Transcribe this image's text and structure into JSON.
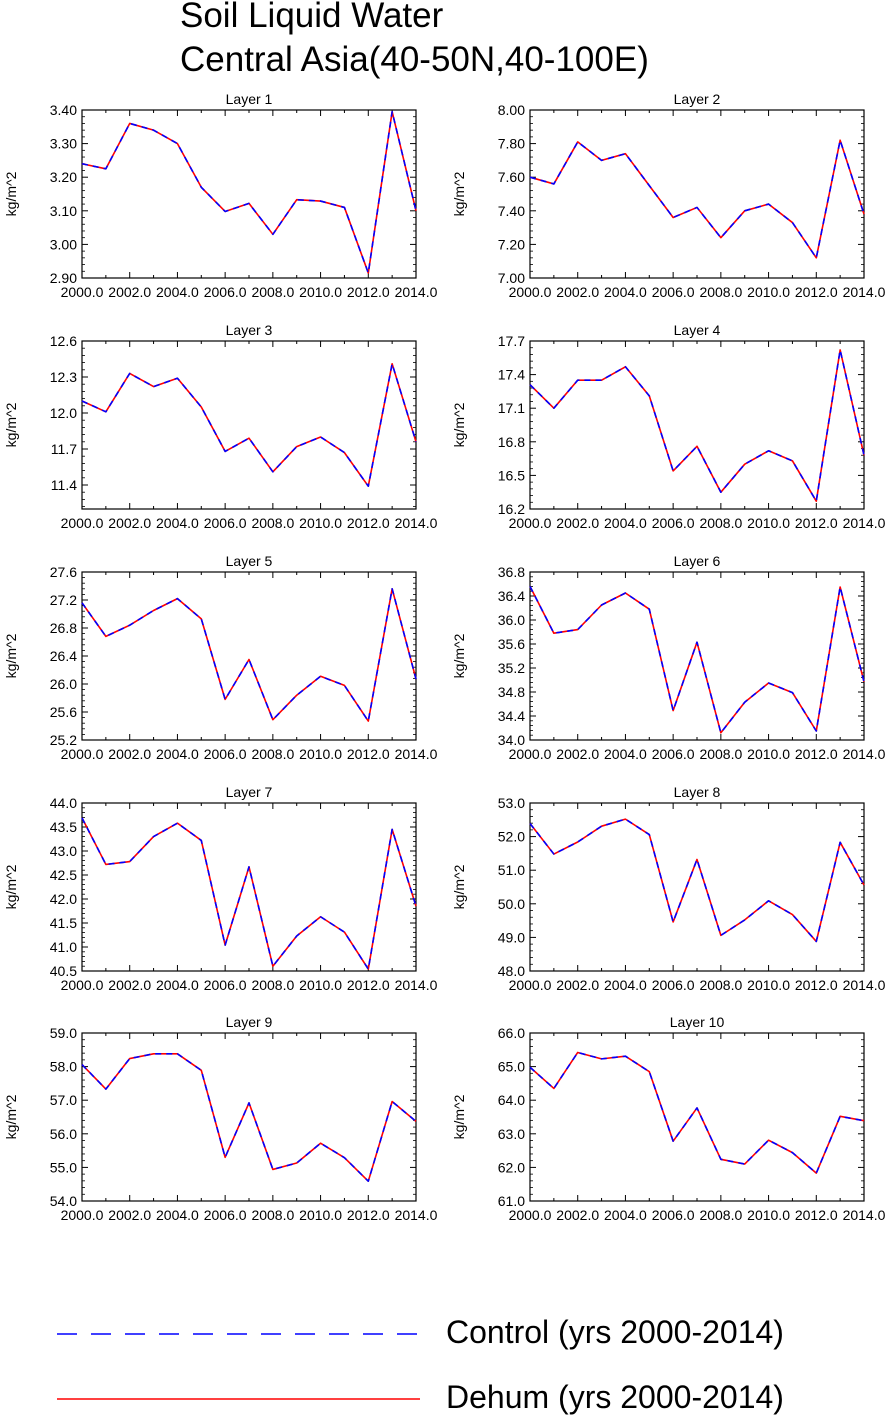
{
  "title_line1": "Soil Liquid Water",
  "title_line2": "Central Asia(40-50N,40-100E)",
  "ylabel": "kg/m^2",
  "colors": {
    "control": "#0000ff",
    "dehum": "#ff0000"
  },
  "legend": {
    "control": "Control (yrs 2000-2014)",
    "dehum": "Dehum (yrs 2000-2014)"
  },
  "chart_data": [
    {
      "type": "line",
      "title": "Layer 1",
      "ylabel": "kg/m^2",
      "x": [
        2000,
        2001,
        2002,
        2003,
        2004,
        2005,
        2006,
        2007,
        2008,
        2009,
        2010,
        2011,
        2012,
        2013,
        2014
      ],
      "xlim": [
        2000,
        2014
      ],
      "xticks": [
        "2000.0",
        "2002.0",
        "2004.0",
        "2006.0",
        "2008.0",
        "2010.0",
        "2012.0",
        "2014.0"
      ],
      "ylim": [
        2.9,
        3.4
      ],
      "yticks": [
        "2.90",
        "3.00",
        "3.10",
        "3.20",
        "3.30",
        "3.40"
      ],
      "series": [
        {
          "name": "Control (yrs 2000-2014)",
          "values": [
            3.24,
            3.225,
            3.36,
            3.34,
            3.3,
            3.17,
            3.098,
            3.122,
            3.03,
            3.133,
            3.129,
            3.11,
            2.915,
            3.395,
            3.1
          ]
        },
        {
          "name": "Dehum (yrs 2000-2014)",
          "values": [
            3.24,
            3.225,
            3.36,
            3.34,
            3.3,
            3.17,
            3.098,
            3.122,
            3.03,
            3.133,
            3.129,
            3.11,
            2.915,
            3.395,
            3.1
          ]
        }
      ]
    },
    {
      "type": "line",
      "title": "Layer 2",
      "ylabel": "kg/m^2",
      "x": [
        2000,
        2001,
        2002,
        2003,
        2004,
        2005,
        2006,
        2007,
        2008,
        2009,
        2010,
        2011,
        2012,
        2013,
        2014
      ],
      "xlim": [
        2000,
        2014
      ],
      "xticks": [
        "2000.0",
        "2002.0",
        "2004.0",
        "2006.0",
        "2008.0",
        "2010.0",
        "2012.0",
        "2014.0"
      ],
      "ylim": [
        7.0,
        8.0
      ],
      "yticks": [
        "7.00",
        "7.20",
        "7.40",
        "7.60",
        "7.80",
        "8.00"
      ],
      "series": [
        {
          "name": "Control (yrs 2000-2014)",
          "values": [
            7.6,
            7.56,
            7.81,
            7.7,
            7.74,
            7.55,
            7.36,
            7.42,
            7.24,
            7.4,
            7.44,
            7.33,
            7.12,
            7.82,
            7.38
          ]
        },
        {
          "name": "Dehum (yrs 2000-2014)",
          "values": [
            7.6,
            7.56,
            7.81,
            7.7,
            7.74,
            7.55,
            7.36,
            7.42,
            7.24,
            7.4,
            7.44,
            7.33,
            7.12,
            7.82,
            7.38
          ]
        }
      ]
    },
    {
      "type": "line",
      "title": "Layer 3",
      "ylabel": "kg/m^2",
      "x": [
        2000,
        2001,
        2002,
        2003,
        2004,
        2005,
        2006,
        2007,
        2008,
        2009,
        2010,
        2011,
        2012,
        2013,
        2014
      ],
      "xlim": [
        2000,
        2014
      ],
      "xticks": [
        "2000.0",
        "2002.0",
        "2004.0",
        "2006.0",
        "2008.0",
        "2010.0",
        "2012.0",
        "2014.0"
      ],
      "ylim": [
        11.2,
        12.6
      ],
      "yticks": [
        "11.4",
        "11.7",
        "12.0",
        "12.3",
        "12.6"
      ],
      "series": [
        {
          "name": "Control (yrs 2000-2014)",
          "values": [
            12.1,
            12.01,
            12.33,
            12.22,
            12.29,
            12.05,
            11.68,
            11.79,
            11.51,
            11.72,
            11.8,
            11.67,
            11.39,
            12.41,
            11.76
          ]
        },
        {
          "name": "Dehum (yrs 2000-2014)",
          "values": [
            12.1,
            12.01,
            12.33,
            12.22,
            12.29,
            12.05,
            11.68,
            11.79,
            11.51,
            11.72,
            11.8,
            11.67,
            11.39,
            12.41,
            11.76
          ]
        }
      ]
    },
    {
      "type": "line",
      "title": "Layer 4",
      "ylabel": "kg/m^2",
      "x": [
        2000,
        2001,
        2002,
        2003,
        2004,
        2005,
        2006,
        2007,
        2008,
        2009,
        2010,
        2011,
        2012,
        2013,
        2014
      ],
      "xlim": [
        2000,
        2014
      ],
      "xticks": [
        "2000.0",
        "2002.0",
        "2004.0",
        "2006.0",
        "2008.0",
        "2010.0",
        "2012.0",
        "2014.0"
      ],
      "ylim": [
        16.2,
        17.7
      ],
      "yticks": [
        "16.2",
        "16.5",
        "16.8",
        "17.1",
        "17.4",
        "17.7"
      ],
      "series": [
        {
          "name": "Control (yrs 2000-2014)",
          "values": [
            17.31,
            17.1,
            17.35,
            17.35,
            17.47,
            17.21,
            16.54,
            16.76,
            16.35,
            16.6,
            16.72,
            16.63,
            16.27,
            17.62,
            16.68
          ]
        },
        {
          "name": "Dehum (yrs 2000-2014)",
          "values": [
            17.31,
            17.1,
            17.35,
            17.35,
            17.47,
            17.21,
            16.54,
            16.76,
            16.35,
            16.6,
            16.72,
            16.63,
            16.27,
            17.62,
            16.68
          ]
        }
      ]
    },
    {
      "type": "line",
      "title": "Layer 5",
      "ylabel": "kg/m^2",
      "x": [
        2000,
        2001,
        2002,
        2003,
        2004,
        2005,
        2006,
        2007,
        2008,
        2009,
        2010,
        2011,
        2012,
        2013,
        2014
      ],
      "xlim": [
        2000,
        2014
      ],
      "xticks": [
        "2000.0",
        "2002.0",
        "2004.0",
        "2006.0",
        "2008.0",
        "2010.0",
        "2012.0",
        "2014.0"
      ],
      "ylim": [
        25.2,
        27.6
      ],
      "yticks": [
        "25.2",
        "25.6",
        "26.0",
        "26.4",
        "26.8",
        "27.2",
        "27.6"
      ],
      "series": [
        {
          "name": "Control (yrs 2000-2014)",
          "values": [
            27.16,
            26.68,
            26.84,
            27.05,
            27.22,
            26.93,
            25.78,
            26.35,
            25.49,
            25.84,
            26.11,
            25.98,
            25.47,
            27.36,
            26.07
          ]
        },
        {
          "name": "Dehum (yrs 2000-2014)",
          "values": [
            27.16,
            26.68,
            26.84,
            27.05,
            27.22,
            26.93,
            25.78,
            26.35,
            25.49,
            25.84,
            26.11,
            25.98,
            25.47,
            27.36,
            26.07
          ]
        }
      ]
    },
    {
      "type": "line",
      "title": "Layer 6",
      "ylabel": "kg/m^2",
      "x": [
        2000,
        2001,
        2002,
        2003,
        2004,
        2005,
        2006,
        2007,
        2008,
        2009,
        2010,
        2011,
        2012,
        2013,
        2014
      ],
      "xlim": [
        2000,
        2014
      ],
      "xticks": [
        "2000.0",
        "2002.0",
        "2004.0",
        "2006.0",
        "2008.0",
        "2010.0",
        "2012.0",
        "2014.0"
      ],
      "ylim": [
        34.0,
        36.8
      ],
      "yticks": [
        "34.0",
        "34.4",
        "34.8",
        "35.2",
        "35.6",
        "36.0",
        "36.4",
        "36.8"
      ],
      "series": [
        {
          "name": "Control (yrs 2000-2014)",
          "values": [
            36.56,
            35.78,
            35.84,
            36.25,
            36.45,
            36.18,
            34.49,
            35.63,
            34.12,
            34.63,
            34.95,
            34.79,
            34.15,
            36.55,
            34.97
          ]
        },
        {
          "name": "Dehum (yrs 2000-2014)",
          "values": [
            36.56,
            35.78,
            35.84,
            36.25,
            36.45,
            36.18,
            34.49,
            35.63,
            34.12,
            34.63,
            34.95,
            34.79,
            34.15,
            36.55,
            34.97
          ]
        }
      ]
    },
    {
      "type": "line",
      "title": "Layer 7",
      "ylabel": "kg/m^2",
      "x": [
        2000,
        2001,
        2002,
        2003,
        2004,
        2005,
        2006,
        2007,
        2008,
        2009,
        2010,
        2011,
        2012,
        2013,
        2014
      ],
      "xlim": [
        2000,
        2014
      ],
      "xticks": [
        "2000.0",
        "2002.0",
        "2004.0",
        "2006.0",
        "2008.0",
        "2010.0",
        "2012.0",
        "2014.0"
      ],
      "ylim": [
        40.5,
        44.0
      ],
      "yticks": [
        "40.5",
        "41.0",
        "41.5",
        "42.0",
        "42.5",
        "43.0",
        "43.5",
        "44.0"
      ],
      "series": [
        {
          "name": "Control (yrs 2000-2014)",
          "values": [
            43.69,
            42.72,
            42.78,
            43.3,
            43.58,
            43.22,
            41.04,
            42.67,
            40.6,
            41.23,
            41.63,
            41.31,
            40.54,
            43.45,
            41.85
          ]
        },
        {
          "name": "Dehum (yrs 2000-2014)",
          "values": [
            43.69,
            42.72,
            42.78,
            43.3,
            43.58,
            43.22,
            41.04,
            42.67,
            40.6,
            41.23,
            41.63,
            41.31,
            40.54,
            43.45,
            41.85
          ]
        }
      ]
    },
    {
      "type": "line",
      "title": "Layer 8",
      "ylabel": "kg/m^2",
      "x": [
        2000,
        2001,
        2002,
        2003,
        2004,
        2005,
        2006,
        2007,
        2008,
        2009,
        2010,
        2011,
        2012,
        2013,
        2014
      ],
      "xlim": [
        2000,
        2014
      ],
      "xticks": [
        "2000.0",
        "2002.0",
        "2004.0",
        "2006.0",
        "2008.0",
        "2010.0",
        "2012.0",
        "2014.0"
      ],
      "ylim": [
        48.0,
        53.0
      ],
      "yticks": [
        "48.0",
        "49.0",
        "50.0",
        "51.0",
        "52.0",
        "53.0"
      ],
      "series": [
        {
          "name": "Control (yrs 2000-2014)",
          "values": [
            52.39,
            51.48,
            51.84,
            52.31,
            52.52,
            52.06,
            49.46,
            51.32,
            49.06,
            49.52,
            50.09,
            49.68,
            48.88,
            51.83,
            50.56
          ]
        },
        {
          "name": "Dehum (yrs 2000-2014)",
          "values": [
            52.39,
            51.48,
            51.84,
            52.31,
            52.52,
            52.06,
            49.46,
            51.32,
            49.06,
            49.52,
            50.09,
            49.68,
            48.88,
            51.83,
            50.56
          ]
        }
      ]
    },
    {
      "type": "line",
      "title": "Layer 9",
      "ylabel": "kg/m^2",
      "x": [
        2000,
        2001,
        2002,
        2003,
        2004,
        2005,
        2006,
        2007,
        2008,
        2009,
        2010,
        2011,
        2012,
        2013,
        2014
      ],
      "xlim": [
        2000,
        2014
      ],
      "xticks": [
        "2000.0",
        "2002.0",
        "2004.0",
        "2006.0",
        "2008.0",
        "2010.0",
        "2012.0",
        "2014.0"
      ],
      "ylim": [
        54.0,
        59.0
      ],
      "yticks": [
        "54.0",
        "55.0",
        "56.0",
        "57.0",
        "58.0",
        "59.0"
      ],
      "series": [
        {
          "name": "Control (yrs 2000-2014)",
          "values": [
            58.06,
            57.33,
            58.24,
            58.38,
            58.38,
            57.89,
            55.3,
            56.92,
            54.94,
            55.13,
            55.72,
            55.29,
            54.59,
            56.96,
            56.37
          ]
        },
        {
          "name": "Dehum (yrs 2000-2014)",
          "values": [
            58.06,
            57.33,
            58.24,
            58.38,
            58.38,
            57.89,
            55.3,
            56.92,
            54.94,
            55.13,
            55.72,
            55.29,
            54.59,
            56.96,
            56.37
          ]
        }
      ]
    },
    {
      "type": "line",
      "title": "Layer 10",
      "ylabel": "kg/m^2",
      "x": [
        2000,
        2001,
        2002,
        2003,
        2004,
        2005,
        2006,
        2007,
        2008,
        2009,
        2010,
        2011,
        2012,
        2013,
        2014
      ],
      "xlim": [
        2000,
        2014
      ],
      "xticks": [
        "2000.0",
        "2002.0",
        "2004.0",
        "2006.0",
        "2008.0",
        "2010.0",
        "2012.0",
        "2014.0"
      ],
      "ylim": [
        61.0,
        66.0
      ],
      "yticks": [
        "61.0",
        "62.0",
        "63.0",
        "64.0",
        "65.0",
        "66.0"
      ],
      "series": [
        {
          "name": "Control (yrs 2000-2014)",
          "values": [
            64.98,
            64.35,
            65.42,
            65.23,
            65.31,
            64.85,
            62.78,
            63.77,
            62.24,
            62.1,
            62.81,
            62.44,
            61.83,
            63.52,
            63.39
          ]
        },
        {
          "name": "Dehum (yrs 2000-2014)",
          "values": [
            64.98,
            64.35,
            65.42,
            65.23,
            65.31,
            64.85,
            62.78,
            63.77,
            62.24,
            62.1,
            62.81,
            62.44,
            61.83,
            63.52,
            63.39
          ]
        }
      ]
    }
  ]
}
